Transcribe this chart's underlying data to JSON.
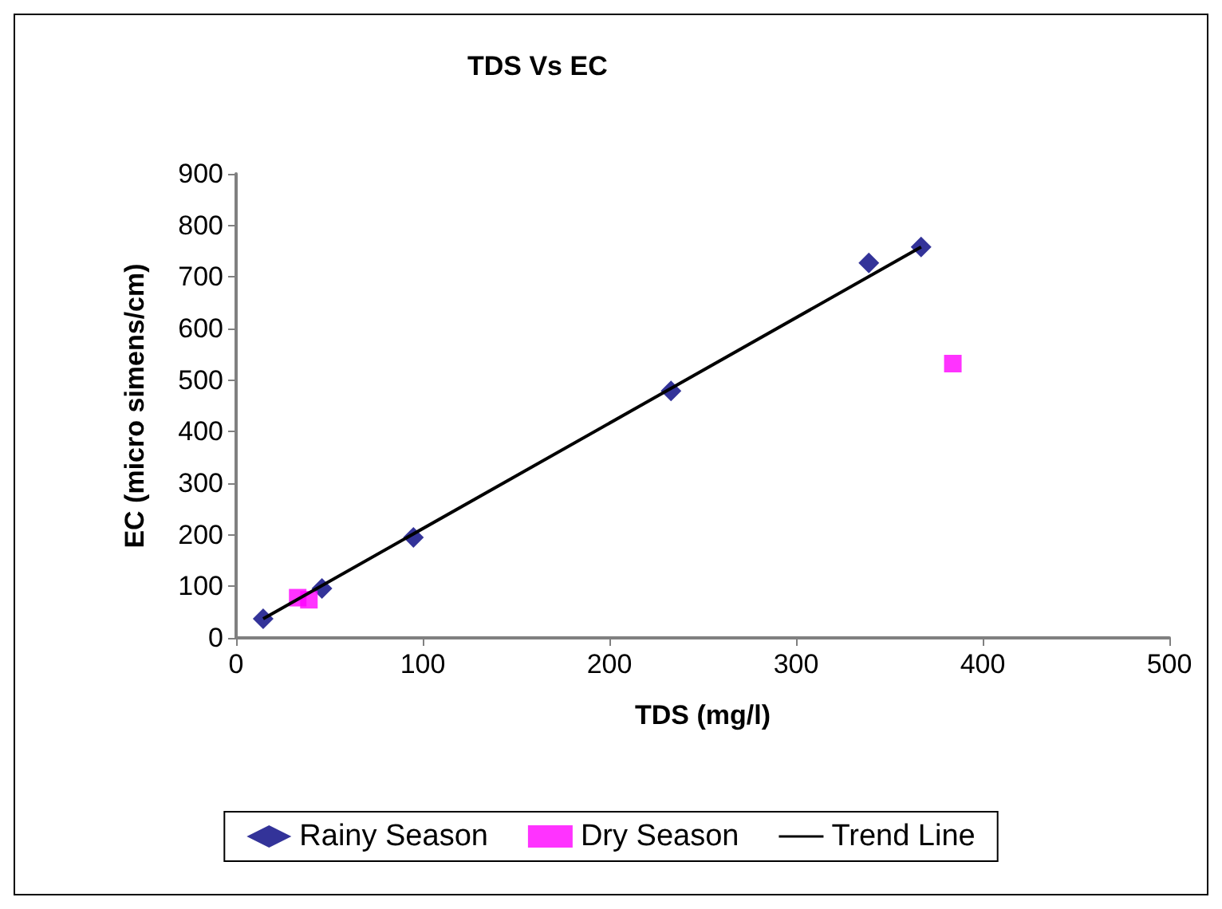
{
  "chart_data": {
    "type": "scatter",
    "title": "TDS Vs EC",
    "xlabel": "TDS (mg/l)",
    "ylabel": "EC (micro simens/cm)",
    "xlim": [
      0,
      500
    ],
    "xticks": [
      0,
      100,
      200,
      300,
      400,
      500
    ],
    "ylim": [
      0,
      900
    ],
    "yticks": [
      0,
      100,
      200,
      300,
      400,
      500,
      600,
      700,
      800,
      900
    ],
    "grid": false,
    "legend": "bottom",
    "series": [
      {
        "name": "Rainy Season",
        "marker": "diamond",
        "color": "#000080",
        "x": [
          14.5,
          46,
          95,
          233,
          339,
          367
        ],
        "values": [
          37,
          96,
          195,
          479,
          727,
          758
        ]
      },
      {
        "name": "Dry Season",
        "marker": "square",
        "color": "#ff00ff",
        "x": [
          33,
          39,
          384
        ],
        "values": [
          78,
          74,
          532
        ]
      },
      {
        "name": "Trend Line",
        "type": "line",
        "marker": "none",
        "color": "#000000",
        "x": [
          14.5,
          367
        ],
        "values": [
          37,
          758
        ]
      }
    ]
  }
}
